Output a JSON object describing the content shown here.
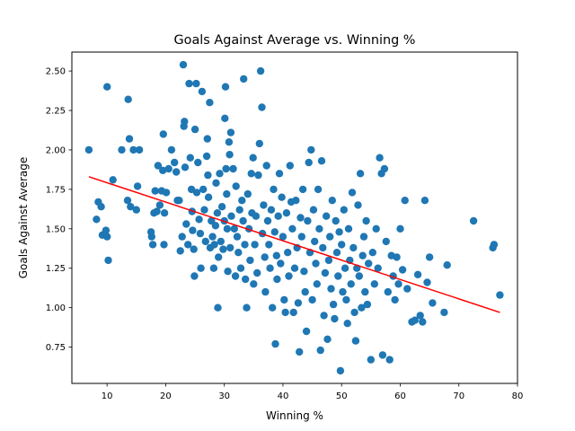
{
  "chart_data": {
    "type": "scatter",
    "title": "Goals Against Average vs. Winning %",
    "xlabel": "Winning %",
    "ylabel": "Goals Against Average",
    "xlim": [
      4.0,
      80.0
    ],
    "ylim": [
      0.52,
      2.62
    ],
    "xticks": [
      10,
      20,
      30,
      40,
      50,
      60,
      70,
      80
    ],
    "yticks": [
      0.75,
      1.0,
      1.25,
      1.5,
      1.75,
      2.0,
      2.25,
      2.5
    ],
    "xtick_labels": [
      "10",
      "20",
      "30",
      "40",
      "50",
      "60",
      "70",
      "80"
    ],
    "ytick_labels": [
      "0.75",
      "1.00",
      "1.25",
      "1.50",
      "1.75",
      "2.00",
      "2.25",
      "2.50"
    ],
    "grid": false,
    "colors": {
      "points": "#1f77b4",
      "trend": "#ff0000"
    },
    "series": [
      {
        "type": "scatter",
        "points": [
          [
            6.9,
            2.0
          ],
          [
            8.2,
            1.56
          ],
          [
            8.5,
            1.67
          ],
          [
            9.0,
            1.64
          ],
          [
            9.2,
            1.46
          ],
          [
            9.8,
            1.49
          ],
          [
            10.0,
            1.45
          ],
          [
            10.2,
            1.3
          ],
          [
            10.0,
            2.4
          ],
          [
            11.0,
            1.81
          ],
          [
            12.5,
            2.0
          ],
          [
            13.5,
            1.68
          ],
          [
            14.0,
            1.64
          ],
          [
            13.8,
            2.07
          ],
          [
            13.6,
            2.32
          ],
          [
            14.5,
            2.0
          ],
          [
            15.2,
            1.77
          ],
          [
            15.0,
            1.62
          ],
          [
            15.5,
            2.0
          ],
          [
            17.5,
            1.48
          ],
          [
            17.6,
            1.45
          ],
          [
            17.8,
            1.4
          ],
          [
            18.0,
            1.6
          ],
          [
            18.2,
            1.74
          ],
          [
            18.5,
            1.61
          ],
          [
            18.7,
            1.9
          ],
          [
            19.0,
            1.65
          ],
          [
            19.3,
            1.74
          ],
          [
            19.5,
            1.87
          ],
          [
            19.6,
            2.1
          ],
          [
            19.8,
            1.6
          ],
          [
            19.7,
            1.4
          ],
          [
            20.1,
            1.73
          ],
          [
            20.5,
            1.88
          ],
          [
            21.0,
            2.0
          ],
          [
            21.5,
            1.92
          ],
          [
            21.8,
            1.86
          ],
          [
            22.0,
            1.68
          ],
          [
            22.3,
            1.68
          ],
          [
            22.5,
            1.36
          ],
          [
            22.8,
            1.45
          ],
          [
            23.0,
            2.54
          ],
          [
            23.1,
            2.15
          ],
          [
            23.2,
            2.18
          ],
          [
            23.3,
            1.89
          ],
          [
            23.5,
            1.53
          ],
          [
            23.8,
            1.4
          ],
          [
            24.0,
            2.42
          ],
          [
            24.2,
            1.95
          ],
          [
            24.4,
            1.75
          ],
          [
            24.5,
            1.61
          ],
          [
            24.6,
            1.49
          ],
          [
            24.8,
            1.37
          ],
          [
            24.9,
            1.2
          ],
          [
            25.0,
            2.13
          ],
          [
            25.2,
            2.42
          ],
          [
            25.3,
            1.73
          ],
          [
            25.5,
            1.92
          ],
          [
            25.7,
            1.56
          ],
          [
            25.9,
            1.47
          ],
          [
            26.0,
            1.25
          ],
          [
            26.2,
            2.37
          ],
          [
            26.4,
            1.75
          ],
          [
            26.6,
            1.62
          ],
          [
            26.8,
            1.42
          ],
          [
            27.0,
            1.96
          ],
          [
            27.1,
            2.07
          ],
          [
            27.2,
            1.84
          ],
          [
            27.3,
            1.7
          ],
          [
            27.5,
            2.3
          ],
          [
            27.6,
            1.38
          ],
          [
            27.8,
            1.55
          ],
          [
            28.0,
            1.45
          ],
          [
            28.2,
            1.25
          ],
          [
            28.3,
            1.4
          ],
          [
            28.5,
            1.52
          ],
          [
            28.6,
            1.79
          ],
          [
            28.8,
            1.6
          ],
          [
            28.9,
            1.0
          ],
          [
            29.0,
            1.32
          ],
          [
            29.2,
            1.85
          ],
          [
            29.4,
            1.42
          ],
          [
            29.6,
            1.64
          ],
          [
            29.8,
            1.37
          ],
          [
            30.0,
            1.55
          ],
          [
            30.1,
            2.2
          ],
          [
            30.2,
            2.4
          ],
          [
            30.3,
            1.88
          ],
          [
            30.4,
            1.72
          ],
          [
            30.5,
            1.5
          ],
          [
            30.6,
            1.23
          ],
          [
            30.8,
            2.05
          ],
          [
            30.9,
            1.97
          ],
          [
            31.0,
            1.38
          ],
          [
            31.1,
            2.11
          ],
          [
            31.2,
            1.58
          ],
          [
            31.5,
            1.88
          ],
          [
            31.7,
            1.5
          ],
          [
            31.9,
            1.2
          ],
          [
            32.0,
            1.77
          ],
          [
            32.2,
            1.45
          ],
          [
            32.4,
            1.35
          ],
          [
            32.6,
            1.62
          ],
          [
            32.8,
            1.25
          ],
          [
            33.0,
            1.68
          ],
          [
            33.2,
            1.55
          ],
          [
            33.3,
            2.45
          ],
          [
            33.5,
            1.4
          ],
          [
            33.6,
            1.18
          ],
          [
            33.8,
            1.0
          ],
          [
            34.0,
            1.72
          ],
          [
            34.2,
            1.5
          ],
          [
            34.4,
            1.3
          ],
          [
            34.6,
            1.85
          ],
          [
            34.7,
            1.6
          ],
          [
            34.9,
            1.95
          ],
          [
            35.0,
            1.15
          ],
          [
            35.2,
            1.4
          ],
          [
            35.4,
            1.58
          ],
          [
            35.6,
            1.22
          ],
          [
            35.8,
            1.84
          ],
          [
            36.0,
            2.04
          ],
          [
            36.2,
            2.5
          ],
          [
            36.4,
            2.27
          ],
          [
            36.5,
            1.47
          ],
          [
            36.7,
            1.65
          ],
          [
            36.9,
            1.32
          ],
          [
            37.0,
            1.1
          ],
          [
            37.2,
            1.9
          ],
          [
            37.4,
            1.55
          ],
          [
            37.6,
            1.4
          ],
          [
            37.8,
            1.25
          ],
          [
            38.0,
            1.62
          ],
          [
            38.2,
            1.0
          ],
          [
            38.4,
            1.75
          ],
          [
            38.6,
            1.48
          ],
          [
            38.7,
            0.77
          ],
          [
            38.9,
            1.33
          ],
          [
            39.0,
            1.18
          ],
          [
            39.2,
            1.58
          ],
          [
            39.4,
            1.85
          ],
          [
            39.6,
            1.28
          ],
          [
            39.8,
            1.7
          ],
          [
            40.0,
            1.45
          ],
          [
            40.2,
            1.05
          ],
          [
            40.4,
            0.97
          ],
          [
            40.6,
            1.6
          ],
          [
            40.8,
            1.35
          ],
          [
            41.0,
            1.2
          ],
          [
            41.2,
            1.9
          ],
          [
            41.4,
            1.67
          ],
          [
            41.6,
            1.5
          ],
          [
            41.8,
            0.97
          ],
          [
            42.0,
            1.25
          ],
          [
            42.2,
            1.68
          ],
          [
            42.4,
            1.38
          ],
          [
            42.6,
            1.03
          ],
          [
            42.8,
            0.72
          ],
          [
            43.0,
            1.57
          ],
          [
            43.2,
            1.45
          ],
          [
            43.4,
            1.75
          ],
          [
            43.6,
            1.23
          ],
          [
            43.8,
            1.1
          ],
          [
            44.0,
            0.85
          ],
          [
            44.2,
            1.55
          ],
          [
            44.4,
            1.92
          ],
          [
            44.6,
            1.35
          ],
          [
            44.8,
            2.0
          ],
          [
            45.0,
            1.05
          ],
          [
            45.2,
            1.62
          ],
          [
            45.4,
            1.42
          ],
          [
            45.6,
            1.28
          ],
          [
            45.8,
            1.15
          ],
          [
            46.0,
            1.75
          ],
          [
            46.2,
            1.5
          ],
          [
            46.4,
            0.73
          ],
          [
            46.6,
            1.93
          ],
          [
            46.8,
            1.38
          ],
          [
            47.0,
            0.95
          ],
          [
            47.2,
            1.22
          ],
          [
            47.4,
            1.58
          ],
          [
            47.6,
            0.8
          ],
          [
            47.8,
            1.3
          ],
          [
            48.0,
            1.45
          ],
          [
            48.2,
            1.12
          ],
          [
            48.4,
            1.68
          ],
          [
            48.6,
            1.02
          ],
          [
            48.8,
            0.93
          ],
          [
            49.0,
            1.55
          ],
          [
            49.2,
            1.35
          ],
          [
            49.4,
            1.2
          ],
          [
            49.6,
            1.48
          ],
          [
            49.8,
            0.6
          ],
          [
            50.0,
            1.4
          ],
          [
            50.2,
            1.1
          ],
          [
            50.4,
            1.62
          ],
          [
            50.6,
            1.25
          ],
          [
            50.8,
            1.05
          ],
          [
            51.0,
            0.9
          ],
          [
            51.2,
            1.5
          ],
          [
            51.4,
            1.3
          ],
          [
            51.6,
            1.15
          ],
          [
            51.8,
            1.73
          ],
          [
            52.0,
            1.38
          ],
          [
            52.2,
            0.97
          ],
          [
            52.4,
            0.79
          ],
          [
            52.6,
            1.25
          ],
          [
            52.8,
            1.65
          ],
          [
            53.0,
            1.2
          ],
          [
            53.2,
            1.85
          ],
          [
            53.4,
            1.0
          ],
          [
            53.6,
            1.33
          ],
          [
            53.8,
            1.45
          ],
          [
            54.0,
            1.1
          ],
          [
            54.2,
            1.55
          ],
          [
            54.4,
            1.02
          ],
          [
            54.6,
            1.28
          ],
          [
            55.0,
            0.67
          ],
          [
            55.3,
            1.35
          ],
          [
            55.6,
            1.15
          ],
          [
            55.9,
            1.5
          ],
          [
            56.2,
            1.25
          ],
          [
            56.5,
            1.95
          ],
          [
            56.8,
            1.85
          ],
          [
            57.0,
            0.7
          ],
          [
            57.3,
            1.88
          ],
          [
            57.6,
            1.42
          ],
          [
            57.9,
            1.1
          ],
          [
            58.2,
            0.67
          ],
          [
            58.5,
            1.33
          ],
          [
            58.8,
            1.2
          ],
          [
            59.1,
            1.05
          ],
          [
            59.4,
            1.32
          ],
          [
            59.7,
            1.15
          ],
          [
            60.0,
            1.5
          ],
          [
            60.4,
            1.24
          ],
          [
            60.8,
            1.68
          ],
          [
            61.2,
            1.12
          ],
          [
            62.0,
            0.91
          ],
          [
            62.5,
            0.92
          ],
          [
            63.0,
            1.21
          ],
          [
            63.4,
            0.95
          ],
          [
            63.8,
            0.91
          ],
          [
            64.2,
            1.68
          ],
          [
            64.6,
            1.16
          ],
          [
            65.0,
            1.32
          ],
          [
            65.5,
            1.03
          ],
          [
            67.5,
            0.97
          ],
          [
            68.0,
            1.27
          ],
          [
            72.5,
            1.55
          ],
          [
            75.8,
            1.38
          ],
          [
            76.0,
            1.4
          ],
          [
            77.0,
            1.08
          ]
        ]
      },
      {
        "type": "line",
        "x": [
          6.9,
          77.0
        ],
        "y": [
          1.83,
          0.97
        ]
      }
    ]
  }
}
